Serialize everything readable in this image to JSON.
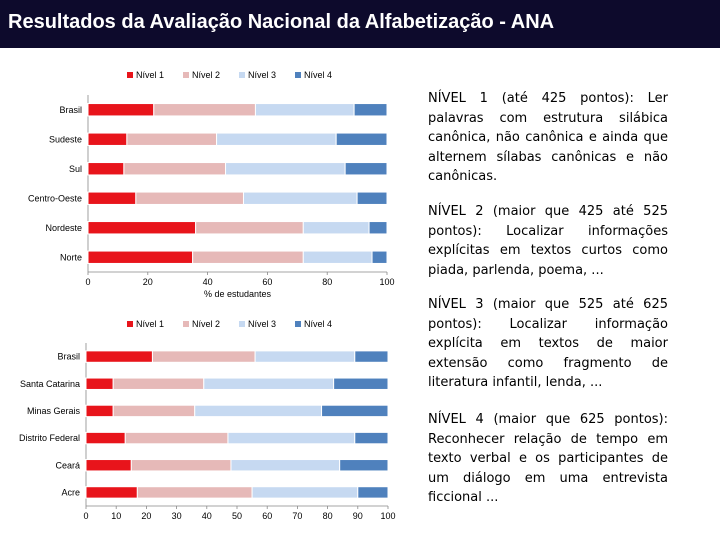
{
  "header": {
    "title": "Resultados da Avaliação Nacional da Alfabetização - ANA"
  },
  "colors": {
    "header_bg": "#0d0a2c",
    "nivel1": "#e8141b",
    "nivel2": "#e6b9b8",
    "nivel3": "#c6d9f1",
    "nivel4": "#4f81bd"
  },
  "chart_data": [
    {
      "type": "bar",
      "orientation": "horizontal",
      "stacked": true,
      "categories": [
        "Brasil",
        "Sudeste",
        "Sul",
        "Centro-Oeste",
        "Nordeste",
        "Norte"
      ],
      "series": [
        {
          "name": "Nível 1",
          "values": [
            22,
            13,
            12,
            16,
            36,
            35
          ]
        },
        {
          "name": "Nível 2",
          "values": [
            34,
            30,
            34,
            36,
            36,
            37
          ]
        },
        {
          "name": "Nível 3",
          "values": [
            33,
            40,
            40,
            38,
            22,
            23
          ]
        },
        {
          "name": "Nível 4",
          "values": [
            11,
            17,
            14,
            10,
            6,
            5
          ]
        }
      ],
      "xlim": [
        0,
        100
      ],
      "xticks": [
        "0",
        "20",
        "40",
        "60",
        "80",
        "100"
      ],
      "xlabel": "% de estudantes",
      "legend": "top"
    },
    {
      "type": "bar",
      "orientation": "horizontal",
      "stacked": true,
      "categories": [
        "Brasil",
        "Santa Catarina",
        "Minas Gerais",
        "Distrito Federal",
        "Ceará",
        "Acre"
      ],
      "series": [
        {
          "name": "Nível 1",
          "values": [
            22,
            9,
            9,
            13,
            15,
            17
          ]
        },
        {
          "name": "Nível 2",
          "values": [
            34,
            30,
            27,
            34,
            33,
            38
          ]
        },
        {
          "name": "Nível 3",
          "values": [
            33,
            43,
            42,
            42,
            36,
            35
          ]
        },
        {
          "name": "Nível 4",
          "values": [
            11,
            18,
            22,
            11,
            16,
            10
          ]
        }
      ],
      "xlim": [
        0,
        100
      ],
      "xticks": [
        "0",
        "10",
        "20",
        "30",
        "40",
        "50",
        "60",
        "70",
        "80",
        "90",
        "100"
      ],
      "xlabel": "",
      "legend": "top"
    }
  ],
  "levels": [
    "NÍVEL 1 (até 425 pontos): Ler palavras com estrutura silábica canônica, não canônica e ainda que alternem sílabas canônicas e não canônicas.",
    "NÍVEL 2 (maior que 425 até 525 pontos): Localizar informações explícitas em textos curtos como piada, parlenda, poema, ...",
    "NÍVEL 3 (maior que 525 até 625 pontos): Localizar informação explícita em textos de maior extensão como fragmento de literatura infantil, lenda, ...",
    "NÍVEL 4 (maior que 625 pontos): Reconhecer relação de tempo em texto verbal e os participantes de um diálogo em uma entrevista ficcional ..."
  ]
}
